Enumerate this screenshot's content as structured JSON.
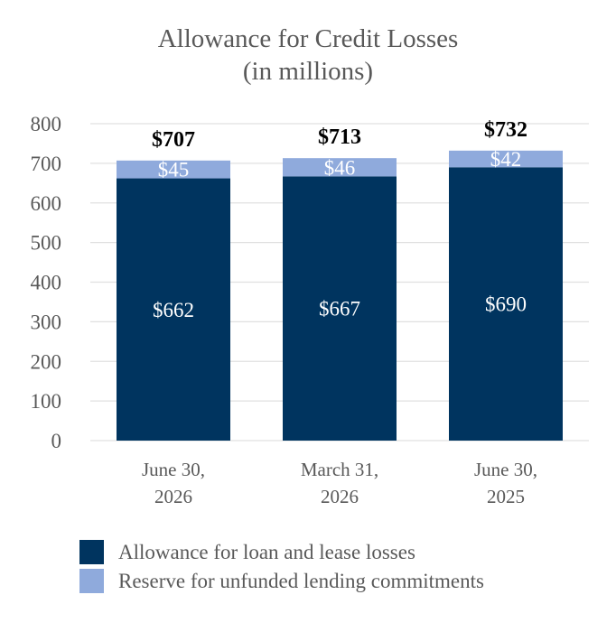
{
  "chart_data": {
    "type": "bar",
    "stacked": true,
    "title": [
      "Allowance for Credit Losses",
      "(in millions)"
    ],
    "categories": [
      [
        "June 30,",
        "2026"
      ],
      [
        "March 31,",
        "2026"
      ],
      [
        "June 30,",
        "2025"
      ]
    ],
    "series": [
      {
        "name": "Allowance for loan and lease losses",
        "values": [
          662,
          667,
          690
        ],
        "labels": [
          "$662",
          "$667",
          "$690"
        ],
        "color": "#00345f"
      },
      {
        "name": "Reserve for unfunded lending commitments",
        "values": [
          45,
          46,
          42
        ],
        "labels": [
          "$45",
          "$46",
          "$42"
        ],
        "color": "#8faadc"
      }
    ],
    "totals": [
      "$707",
      "$713",
      "$732"
    ],
    "yticks": [
      "0",
      "100",
      "200",
      "300",
      "400",
      "500",
      "600",
      "700",
      "800"
    ],
    "ylim": [
      0,
      800
    ],
    "grid": true,
    "legend_position": "bottom"
  }
}
